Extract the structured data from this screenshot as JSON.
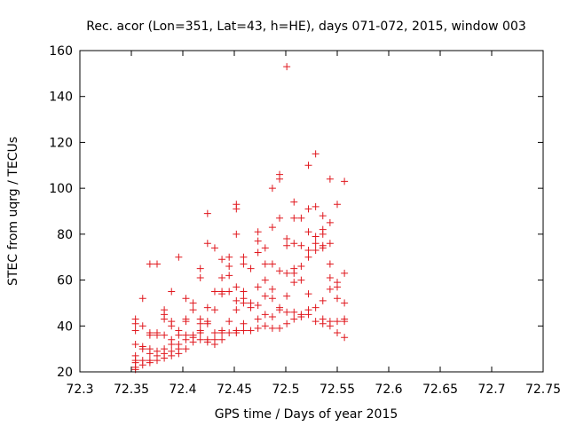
{
  "chart_data": {
    "type": "scatter",
    "title": "Rec. acor (Lon=351, Lat=43, h=HE), days 071-072, 2015, window 003",
    "xlabel": "GPS time / Days of year 2015",
    "ylabel": "STEC from uqrg / TECUs",
    "xlim": [
      72.3,
      72.75
    ],
    "ylim": [
      20,
      160
    ],
    "xticks": [
      "72.3",
      "72.35",
      "72.4",
      "72.45",
      "72.5",
      "72.55",
      "72.6",
      "72.65",
      "72.7",
      "72.75"
    ],
    "yticks": [
      "20",
      "40",
      "60",
      "80",
      "100",
      "120",
      "140",
      "160"
    ],
    "grid": false,
    "legend": "none",
    "marker": "plus",
    "color": "#e0181e",
    "series": [
      {
        "points": [
          [
            72.354,
            43
          ],
          [
            72.354,
            41
          ],
          [
            72.354,
            38
          ],
          [
            72.354,
            32
          ],
          [
            72.354,
            27
          ],
          [
            72.354,
            25
          ],
          [
            72.354,
            24
          ],
          [
            72.354,
            22
          ],
          [
            72.354,
            21
          ],
          [
            72.361,
            52
          ],
          [
            72.361,
            40
          ],
          [
            72.361,
            31
          ],
          [
            72.361,
            30
          ],
          [
            72.361,
            25
          ],
          [
            72.361,
            23
          ],
          [
            72.368,
            67
          ],
          [
            72.368,
            37
          ],
          [
            72.368,
            36
          ],
          [
            72.368,
            30
          ],
          [
            72.368,
            28
          ],
          [
            72.368,
            25
          ],
          [
            72.368,
            24
          ],
          [
            72.375,
            67
          ],
          [
            72.375,
            37
          ],
          [
            72.375,
            36
          ],
          [
            72.375,
            29
          ],
          [
            72.375,
            27
          ],
          [
            72.375,
            25
          ],
          [
            72.382,
            47
          ],
          [
            72.382,
            45
          ],
          [
            72.382,
            43
          ],
          [
            72.382,
            36
          ],
          [
            72.382,
            30
          ],
          [
            72.382,
            28
          ],
          [
            72.382,
            26
          ],
          [
            72.389,
            55
          ],
          [
            72.389,
            42
          ],
          [
            72.389,
            40
          ],
          [
            72.389,
            34
          ],
          [
            72.389,
            32
          ],
          [
            72.389,
            29
          ],
          [
            72.389,
            27
          ],
          [
            72.396,
            70
          ],
          [
            72.396,
            38
          ],
          [
            72.396,
            36
          ],
          [
            72.396,
            32
          ],
          [
            72.396,
            30
          ],
          [
            72.396,
            28
          ],
          [
            72.403,
            52
          ],
          [
            72.403,
            43
          ],
          [
            72.403,
            42
          ],
          [
            72.403,
            36
          ],
          [
            72.403,
            34
          ],
          [
            72.403,
            30
          ],
          [
            72.41,
            50
          ],
          [
            72.41,
            47
          ],
          [
            72.41,
            36
          ],
          [
            72.41,
            35
          ],
          [
            72.41,
            33
          ],
          [
            72.417,
            65
          ],
          [
            72.417,
            61
          ],
          [
            72.417,
            43
          ],
          [
            72.417,
            41
          ],
          [
            72.417,
            38
          ],
          [
            72.417,
            37
          ],
          [
            72.417,
            34
          ],
          [
            72.424,
            89
          ],
          [
            72.424,
            76
          ],
          [
            72.424,
            48
          ],
          [
            72.424,
            42
          ],
          [
            72.424,
            41
          ],
          [
            72.424,
            34
          ],
          [
            72.424,
            33
          ],
          [
            72.431,
            74
          ],
          [
            72.431,
            55
          ],
          [
            72.431,
            47
          ],
          [
            72.431,
            37
          ],
          [
            72.431,
            34
          ],
          [
            72.431,
            32
          ],
          [
            72.438,
            69
          ],
          [
            72.438,
            61
          ],
          [
            72.438,
            55
          ],
          [
            72.438,
            54
          ],
          [
            72.438,
            38
          ],
          [
            72.438,
            37
          ],
          [
            72.438,
            34
          ],
          [
            72.445,
            70
          ],
          [
            72.445,
            66
          ],
          [
            72.445,
            62
          ],
          [
            72.445,
            55
          ],
          [
            72.445,
            42
          ],
          [
            72.445,
            37
          ],
          [
            72.452,
            93
          ],
          [
            72.452,
            91
          ],
          [
            72.452,
            80
          ],
          [
            72.452,
            57
          ],
          [
            72.452,
            51
          ],
          [
            72.452,
            47
          ],
          [
            72.452,
            38
          ],
          [
            72.452,
            37
          ],
          [
            72.459,
            70
          ],
          [
            72.459,
            67
          ],
          [
            72.459,
            55
          ],
          [
            72.459,
            52
          ],
          [
            72.459,
            50
          ],
          [
            72.459,
            41
          ],
          [
            72.459,
            38
          ],
          [
            72.466,
            65
          ],
          [
            72.466,
            50
          ],
          [
            72.466,
            48
          ],
          [
            72.466,
            38
          ],
          [
            72.473,
            81
          ],
          [
            72.473,
            77
          ],
          [
            72.473,
            72
          ],
          [
            72.473,
            57
          ],
          [
            72.473,
            49
          ],
          [
            72.473,
            43
          ],
          [
            72.473,
            39
          ],
          [
            72.48,
            74
          ],
          [
            72.48,
            67
          ],
          [
            72.48,
            60
          ],
          [
            72.48,
            53
          ],
          [
            72.48,
            45
          ],
          [
            72.48,
            40
          ],
          [
            72.487,
            100
          ],
          [
            72.487,
            83
          ],
          [
            72.487,
            67
          ],
          [
            72.487,
            56
          ],
          [
            72.487,
            52
          ],
          [
            72.487,
            44
          ],
          [
            72.487,
            39
          ],
          [
            72.494,
            106
          ],
          [
            72.494,
            104
          ],
          [
            72.494,
            87
          ],
          [
            72.494,
            64
          ],
          [
            72.494,
            48
          ],
          [
            72.494,
            47
          ],
          [
            72.494,
            39
          ],
          [
            72.501,
            153
          ],
          [
            72.501,
            78
          ],
          [
            72.501,
            75
          ],
          [
            72.501,
            63
          ],
          [
            72.501,
            53
          ],
          [
            72.501,
            46
          ],
          [
            72.501,
            41
          ],
          [
            72.508,
            94
          ],
          [
            72.508,
            87
          ],
          [
            72.508,
            76
          ],
          [
            72.508,
            65
          ],
          [
            72.508,
            63
          ],
          [
            72.508,
            59
          ],
          [
            72.508,
            46
          ],
          [
            72.508,
            43
          ],
          [
            72.515,
            87
          ],
          [
            72.515,
            75
          ],
          [
            72.515,
            66
          ],
          [
            72.515,
            60
          ],
          [
            72.515,
            45
          ],
          [
            72.515,
            44
          ],
          [
            72.522,
            110
          ],
          [
            72.522,
            91
          ],
          [
            72.522,
            81
          ],
          [
            72.522,
            73
          ],
          [
            72.522,
            70
          ],
          [
            72.522,
            54
          ],
          [
            72.522,
            47
          ],
          [
            72.522,
            45
          ],
          [
            72.529,
            115
          ],
          [
            72.529,
            92
          ],
          [
            72.529,
            79
          ],
          [
            72.529,
            76
          ],
          [
            72.529,
            73
          ],
          [
            72.529,
            48
          ],
          [
            72.529,
            42
          ],
          [
            72.536,
            88
          ],
          [
            72.536,
            82
          ],
          [
            72.536,
            80
          ],
          [
            72.536,
            75
          ],
          [
            72.536,
            74
          ],
          [
            72.536,
            51
          ],
          [
            72.536,
            43
          ],
          [
            72.536,
            41
          ],
          [
            72.543,
            104
          ],
          [
            72.543,
            85
          ],
          [
            72.543,
            76
          ],
          [
            72.543,
            67
          ],
          [
            72.543,
            61
          ],
          [
            72.543,
            56
          ],
          [
            72.543,
            42
          ],
          [
            72.543,
            40
          ],
          [
            72.55,
            93
          ],
          [
            72.55,
            59
          ],
          [
            72.55,
            57
          ],
          [
            72.55,
            52
          ],
          [
            72.55,
            42
          ],
          [
            72.55,
            37
          ],
          [
            72.557,
            103
          ],
          [
            72.557,
            63
          ],
          [
            72.557,
            50
          ],
          [
            72.557,
            43
          ],
          [
            72.557,
            42
          ],
          [
            72.557,
            35
          ]
        ]
      }
    ]
  }
}
